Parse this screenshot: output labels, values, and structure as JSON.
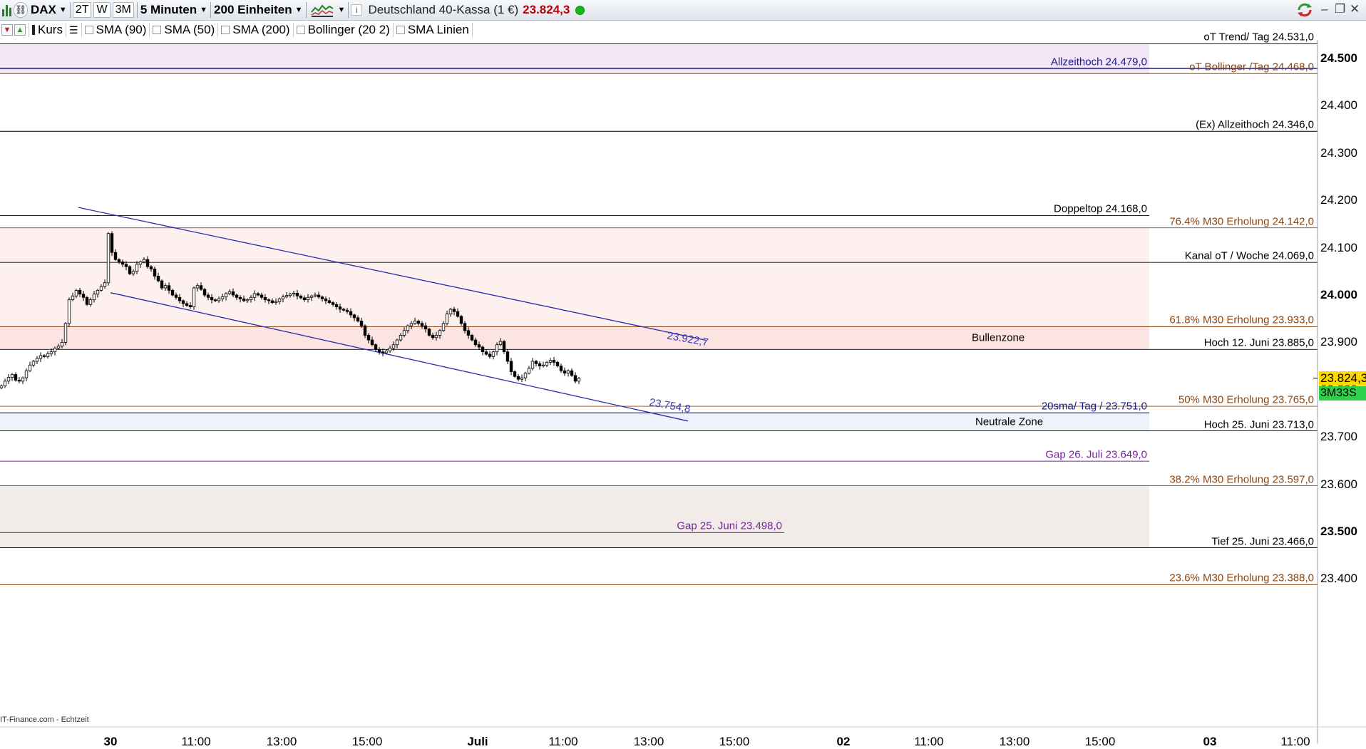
{
  "toolbar": {
    "symbol": "DAX",
    "period_buttons": [
      "2T",
      "W",
      "3M"
    ],
    "interval": "5 Minuten",
    "units": "200 Einheiten",
    "instrument": "Deutschland 40-Kassa (1 €)",
    "last_price": "23.824,3",
    "window_controls": [
      "minimize-icon",
      "restore-icon",
      "close-icon"
    ]
  },
  "indicators": {
    "price_label": "Kurs",
    "items": [
      "SMA (90)",
      "SMA (50)",
      "SMA (200)",
      "Bollinger (20 2)",
      "SMA Linien"
    ]
  },
  "chart": {
    "price_axis": [
      "24.500",
      "24.400",
      "24.300",
      "24.200",
      "24.100",
      "24.000",
      "23.900",
      "23.800",
      "23.700",
      "23.600",
      "23.500",
      "23.400"
    ],
    "bold_price_ticks": [
      "24.500",
      "24.000",
      "23.500"
    ],
    "time_axis": [
      "30",
      "11:00",
      "13:00",
      "15:00",
      "Juli",
      "11:00",
      "13:00",
      "15:00",
      "02",
      "11:00",
      "13:00",
      "15:00",
      "03",
      "11:00"
    ],
    "bold_time_ticks": [
      "30",
      "Juli",
      "02",
      "03"
    ],
    "current_price": "23.824,3",
    "countdown": "3M33S",
    "source": "IT-Finance.com - Echtzeit",
    "levels": {
      "ot_trend": "oT Trend/ Tag 24.531,0",
      "allzeithoch": "Allzeithoch 24.479,0",
      "ot_bollinger": "oT Bollinger /Tag 24.468,0",
      "ex_allzeithoch": "(Ex) Allzeithoch 24.346,0",
      "doppeltop": "Doppeltop 24.168,0",
      "fib_764": "76.4%  M30 Erholung 24.142,0",
      "kanal": "Kanal oT / Woche 24.069,0",
      "fib_618": "61.8%  M30 Erholung 23.933,0",
      "bullenzone": "Bullenzone",
      "hoch_12_juni": "Hoch 12. Juni 23.885,0",
      "fib_50": "50%  M30 Erholung 23.765,0",
      "sma20": "20sma/ Tag /   23.751,0",
      "neutrale_zone": "Neutrale Zone",
      "hoch_25_juni": "Hoch 25. Juni 23.713,0",
      "gap_26_juli": "Gap 26. Juli  23.649,0",
      "fib_382": "38.2%  M30 Erholung 23.597,0",
      "gap_25_juni": "Gap  25. Juni 23.498,0",
      "tief_25_juni": "Tief 25. Juni  23.466,0",
      "fib_236": "23.6%  M30 Erholung 23.388,0"
    },
    "channel_upper_label": "23.922,7",
    "channel_lower_label": "23.754,8"
  },
  "chart_data": {
    "type": "candlestick",
    "price_range": [
      23360,
      24560
    ],
    "y_unit": "DAX points",
    "levels": [
      {
        "label": "oT Trend/ Tag",
        "value": 24531.0
      },
      {
        "label": "Allzeithoch",
        "value": 24479.0
      },
      {
        "label": "oT Bollinger /Tag",
        "value": 24468.0
      },
      {
        "label": "(Ex) Allzeithoch",
        "value": 24346.0
      },
      {
        "label": "Doppeltop",
        "value": 24168.0
      },
      {
        "label": "76.4%  M30 Erholung",
        "value": 24142.0
      },
      {
        "label": "Kanal oT / Woche",
        "value": 24069.0
      },
      {
        "label": "61.8%  M30 Erholung",
        "value": 23933.0
      },
      {
        "label": "Hoch 12. Juni",
        "value": 23885.0
      },
      {
        "label": "50%  M30 Erholung",
        "value": 23765.0
      },
      {
        "label": "20sma/ Tag /",
        "value": 23751.0
      },
      {
        "label": "Hoch 25. Juni",
        "value": 23713.0
      },
      {
        "label": "Gap 26. Juli",
        "value": 23649.0
      },
      {
        "label": "38.2%  M30 Erholung",
        "value": 23597.0
      },
      {
        "label": "Gap  25. Juni",
        "value": 23498.0
      },
      {
        "label": "Tief 25. Juni",
        "value": 23466.0
      },
      {
        "label": "23.6%  M30 Erholung",
        "value": 23388.0
      }
    ],
    "channel": {
      "upper_start": 24185,
      "upper_end": 23922.7,
      "lower_start": 24005,
      "lower_end": 23754.8
    },
    "closes": [
      23808,
      23818,
      23826,
      23832,
      23820,
      23818,
      23825,
      23840,
      23852,
      23860,
      23866,
      23872,
      23870,
      23876,
      23880,
      23888,
      23892,
      23900,
      23940,
      23990,
      23998,
      24010,
      24002,
      23995,
      23980,
      23990,
      24002,
      24010,
      24018,
      24026,
      24130,
      24090,
      24075,
      24070,
      24065,
      24060,
      24045,
      24050,
      24065,
      24070,
      24075,
      24060,
      24055,
      24040,
      24030,
      24015,
      24020,
      24010,
      24000,
      23995,
      23988,
      23982,
      23978,
      23975,
      24015,
      24020,
      24012,
      24000,
      23995,
      23990,
      23988,
      23992,
      23996,
      24003,
      24007,
      24000,
      23995,
      23992,
      23988,
      23990,
      23995,
      24003,
      24000,
      23995,
      23990,
      23988,
      23984,
      23986,
      23992,
      23996,
      23999,
      24002,
      24004,
      23998,
      23994,
      23990,
      23995,
      23998,
      24000,
      23996,
      23992,
      23988,
      23984,
      23980,
      23975,
      23970,
      23968,
      23965,
      23958,
      23952,
      23945,
      23935,
      23915,
      23905,
      23895,
      23885,
      23880,
      23878,
      23882,
      23888,
      23895,
      23905,
      23915,
      23925,
      23935,
      23940,
      23945,
      23940,
      23935,
      23928,
      23915,
      23910,
      23915,
      23925,
      23940,
      23960,
      23970,
      23965,
      23955,
      23940,
      23925,
      23915,
      23905,
      23895,
      23890,
      23880,
      23875,
      23870,
      23880,
      23895,
      23902,
      23880,
      23860,
      23838,
      23828,
      23822,
      23825,
      23835,
      23845,
      23860,
      23855,
      23850,
      23852,
      23858,
      23862,
      23858,
      23850,
      23840,
      23835,
      23840,
      23830,
      23818,
      23824
    ]
  }
}
